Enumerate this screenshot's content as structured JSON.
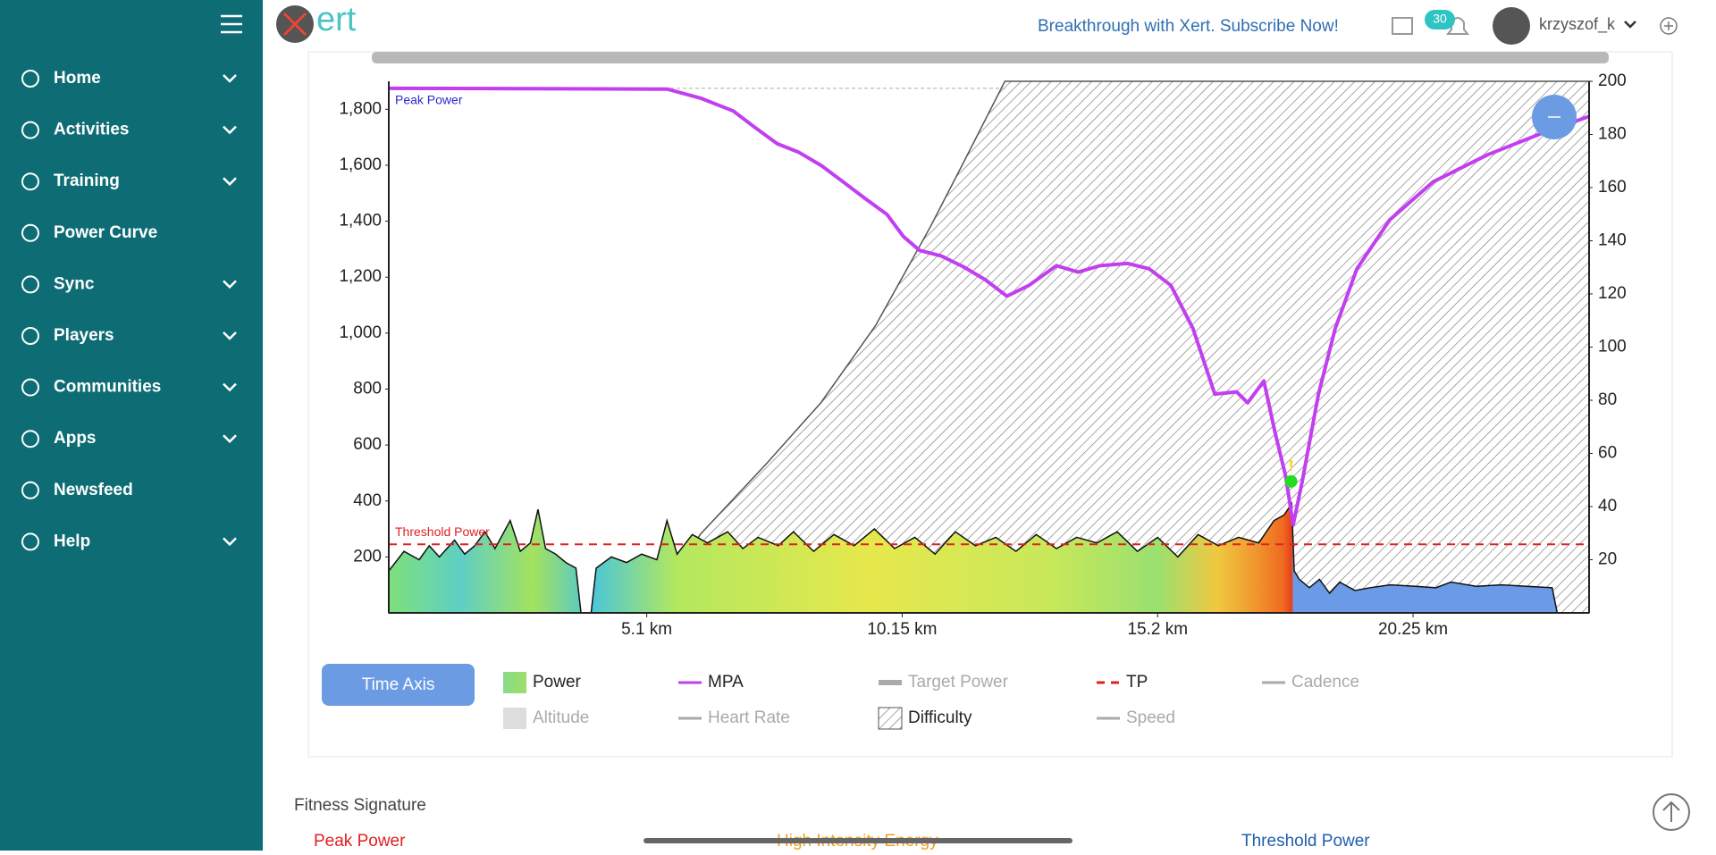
{
  "header": {
    "logo": "ert",
    "promo": "Breakthrough with Xert. Subscribe Now!",
    "notifications": 30,
    "username": "krzyszof_k"
  },
  "nav": [
    {
      "label": "Home",
      "dropdown": true
    },
    {
      "label": "Activities",
      "dropdown": true
    },
    {
      "label": "Training",
      "dropdown": true
    },
    {
      "label": "Power Curve",
      "dropdown": false
    },
    {
      "label": "Sync",
      "dropdown": true
    },
    {
      "label": "Players",
      "dropdown": true
    },
    {
      "label": "Communities",
      "dropdown": true
    },
    {
      "label": "Apps",
      "dropdown": true
    },
    {
      "label": "Newsfeed",
      "dropdown": false
    },
    {
      "label": "Help",
      "dropdown": true
    }
  ],
  "chart_data": {
    "type": "line",
    "xlim": [
      0,
      23.73
    ],
    "xticks": [
      {
        "value": 5.1,
        "label": "5.1 km"
      },
      {
        "value": 10.15,
        "label": "10.15 km"
      },
      {
        "value": 15.2,
        "label": "15.2 km"
      },
      {
        "value": 20.25,
        "label": "20.25 km"
      }
    ],
    "ylim": [
      0,
      1900
    ],
    "yticks": [
      200,
      400,
      600,
      800,
      {
        "value": 1000,
        "label": "1,000"
      },
      {
        "value": 1200,
        "label": "1,200"
      },
      {
        "value": 1400,
        "label": "1,400"
      },
      {
        "value": 1600,
        "label": "1,600"
      },
      {
        "value": 1800,
        "label": "1,800"
      }
    ],
    "y2lim": [
      0,
      200
    ],
    "y2ticks": [
      20,
      40,
      60,
      80,
      100,
      120,
      140,
      160,
      180,
      200
    ],
    "annotations": [
      "Peak Power",
      "Threshold Power"
    ],
    "marker": {
      "x": 17.84,
      "y": 470,
      "color": "#22dd22"
    },
    "series": [
      {
        "name": "Power",
        "kind": "area",
        "visible": true,
        "color": "gradient",
        "x": [
          0,
          0.3,
          0.6,
          0.8,
          1.0,
          1.3,
          1.5,
          1.7,
          1.9,
          2.1,
          2.4,
          2.6,
          2.8,
          2.95,
          3.1,
          3.3,
          3.5,
          3.7,
          3.8,
          4.0,
          4.1,
          4.4,
          4.7,
          5.0,
          5.3,
          5.5,
          5.7,
          6.0,
          6.3,
          6.7,
          7.0,
          7.3,
          7.7,
          8.0,
          8.4,
          8.8,
          9.2,
          9.6,
          10.0,
          10.4,
          10.8,
          11.2,
          11.6,
          12.0,
          12.4,
          12.8,
          13.2,
          13.6,
          14.0,
          14.4,
          14.8,
          15.2,
          15.6,
          16.0,
          16.4,
          16.8,
          17.2,
          17.5,
          17.7,
          17.85,
          17.9,
          18.0,
          18.2,
          18.4,
          18.6,
          18.8,
          19.1,
          19.4,
          19.8,
          20.3,
          20.7,
          21.0,
          21.5,
          22.0,
          22.5,
          23.0,
          23.1
        ],
        "values": [
          150,
          220,
          190,
          240,
          200,
          260,
          210,
          240,
          290,
          230,
          330,
          220,
          250,
          370,
          230,
          210,
          180,
          160,
          0,
          0,
          160,
          200,
          180,
          210,
          190,
          330,
          210,
          280,
          250,
          290,
          230,
          270,
          240,
          290,
          220,
          280,
          240,
          300,
          230,
          270,
          210,
          290,
          240,
          270,
          220,
          280,
          230,
          270,
          250,
          290,
          220,
          270,
          200,
          280,
          240,
          270,
          250,
          330,
          350,
          390,
          150,
          120,
          90,
          120,
          70,
          110,
          80,
          90,
          100,
          95,
          90,
          110,
          95,
          100,
          95,
          90,
          0
        ]
      },
      {
        "name": "MPA",
        "kind": "line",
        "visible": true,
        "color": "#c23ff0",
        "x": [
          0,
          5.51,
          6.16,
          6.81,
          7.24,
          7.68,
          8.11,
          8.55,
          8.98,
          9.41,
          9.85,
          10.17,
          10.49,
          10.92,
          11.36,
          11.79,
          12.22,
          12.66,
          13.2,
          13.63,
          14.06,
          14.6,
          15.03,
          15.46,
          15.9,
          16.33,
          16.76,
          16.98,
          17.3,
          17.52,
          17.73,
          17.88,
          18.06,
          18.38,
          18.71,
          19.14,
          19.79,
          20.65,
          21.73,
          22.82,
          23.72
        ],
        "values": [
          1875,
          1872,
          1840,
          1794,
          1735,
          1677,
          1646,
          1599,
          1541,
          1482,
          1424,
          1346,
          1296,
          1276,
          1237,
          1191,
          1132,
          1171,
          1241,
          1218,
          1241,
          1249,
          1230,
          1171,
          1016,
          782,
          790,
          751,
          829,
          646,
          490,
          315,
          471,
          782,
          1016,
          1230,
          1405,
          1541,
          1638,
          1716,
          1774
        ]
      },
      {
        "name": "Target Power",
        "kind": "thick",
        "visible": false,
        "color": "#aaaaaa"
      },
      {
        "name": "TP",
        "kind": "hline",
        "visible": true,
        "color": "#e02020",
        "value": 245
      },
      {
        "name": "Cadence",
        "kind": "line",
        "visible": false,
        "color": "#aaaaaa"
      },
      {
        "name": "Altitude",
        "kind": "box",
        "visible": false,
        "color": "#dddddd"
      },
      {
        "name": "Heart Rate",
        "kind": "line",
        "visible": false,
        "color": "#aaaaaa"
      },
      {
        "name": "Difficulty",
        "kind": "hatch",
        "axis": "y2",
        "visible": true,
        "color": "#555555",
        "x": [
          5.19,
          6.16,
          7.46,
          8.54,
          9.62,
          10.7,
          11.35,
          12.18,
          23.73
        ],
        "values": [
          0,
          29.6,
          56,
          79,
          108,
          145,
          169,
          200,
          200
        ]
      },
      {
        "name": "Speed",
        "kind": "line",
        "visible": false,
        "color": "#aaaaaa"
      }
    ]
  },
  "controls": {
    "time_axis": "Time Axis"
  },
  "fitness_signature": {
    "title": "Fitness Signature",
    "items": [
      {
        "label": "Peak Power",
        "color": "#e02020"
      },
      {
        "label": "High Intensity Energy",
        "color": "#f0a020"
      },
      {
        "label": "Threshold Power",
        "color": "#1f5fae"
      }
    ]
  }
}
